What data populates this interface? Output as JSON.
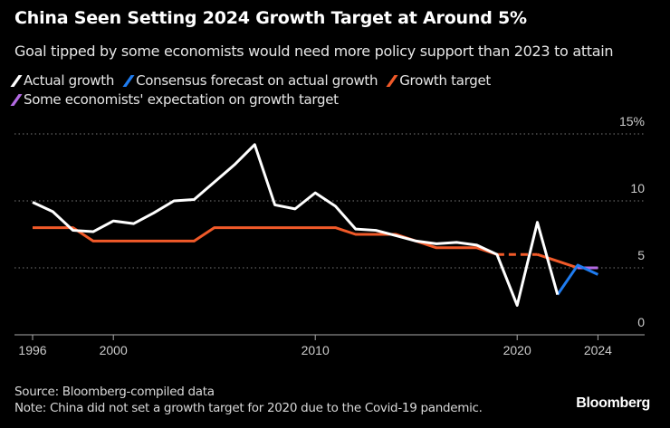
{
  "header": {
    "title": "China Seen Setting 2024 Growth Target at Around 5%",
    "subtitle": "Goal tipped by some economists would need more policy support than 2023 to attain"
  },
  "legend": [
    {
      "label": "Actual growth",
      "color": "#ffffff"
    },
    {
      "label": "Consensus forecast on actual growth",
      "color": "#1f7cf0"
    },
    {
      "label": "Growth target",
      "color": "#f15a29"
    },
    {
      "label": "Some economists' expectation on growth target",
      "color": "#b36ae2"
    }
  ],
  "chart_data": {
    "type": "line",
    "title": "China Seen Setting 2024 Growth Target at Around 5%",
    "xlim": [
      1995,
      2026
    ],
    "ylim": [
      0,
      15
    ],
    "y_ticks": [
      "0",
      "5",
      "10",
      "15%"
    ],
    "y_tick_values": [
      0,
      5,
      10,
      15
    ],
    "x_ticks": [
      "1996",
      "2000",
      "2010",
      "2020",
      "2024"
    ],
    "x_tick_values": [
      1996,
      2000,
      2010,
      2020,
      2024
    ],
    "grid": true,
    "legend_placement": "top-left",
    "series": [
      {
        "name": "Actual growth",
        "color": "#ffffff",
        "x": [
          1996,
          1997,
          1998,
          1999,
          2000,
          2001,
          2002,
          2003,
          2004,
          2005,
          2006,
          2007,
          2008,
          2009,
          2010,
          2011,
          2012,
          2013,
          2014,
          2015,
          2016,
          2017,
          2018,
          2019,
          2020,
          2021,
          2022
        ],
        "values": [
          9.9,
          9.2,
          7.8,
          7.7,
          8.5,
          8.3,
          9.1,
          10.0,
          10.1,
          11.4,
          12.7,
          14.2,
          9.7,
          9.4,
          10.6,
          9.6,
          7.9,
          7.8,
          7.4,
          7.0,
          6.8,
          6.9,
          6.7,
          6.0,
          2.2,
          8.4,
          3.0
        ]
      },
      {
        "name": "Consensus forecast on actual growth",
        "color": "#1f7cf0",
        "x": [
          2022,
          2023,
          2024
        ],
        "values": [
          3.0,
          5.2,
          4.5
        ]
      },
      {
        "name": "Growth target",
        "color": "#f15a29",
        "x": [
          1996,
          1997,
          1998,
          1999,
          2000,
          2001,
          2002,
          2003,
          2004,
          2005,
          2006,
          2007,
          2008,
          2009,
          2010,
          2011,
          2012,
          2013,
          2014,
          2015,
          2016,
          2017,
          2018,
          2019,
          2021,
          2022,
          2023
        ],
        "values": [
          8,
          8,
          8,
          7,
          7,
          7,
          7,
          7,
          7,
          8,
          8,
          8,
          8,
          8,
          8,
          8,
          7.5,
          7.5,
          7.5,
          7,
          6.5,
          6.5,
          6.5,
          6,
          6,
          5.5,
          5
        ],
        "dashed_between": [
          2019,
          2021
        ]
      },
      {
        "name": "Some economists' expectation on growth target",
        "color": "#b36ae2",
        "x": [
          2023,
          2024
        ],
        "values": [
          5,
          5
        ]
      }
    ]
  },
  "footer": {
    "source": "Source: Bloomberg-compiled data",
    "note": "Note: China did not set a growth target for 2020 due to the Covid-19 pandemic.",
    "logo": "Bloomberg"
  }
}
